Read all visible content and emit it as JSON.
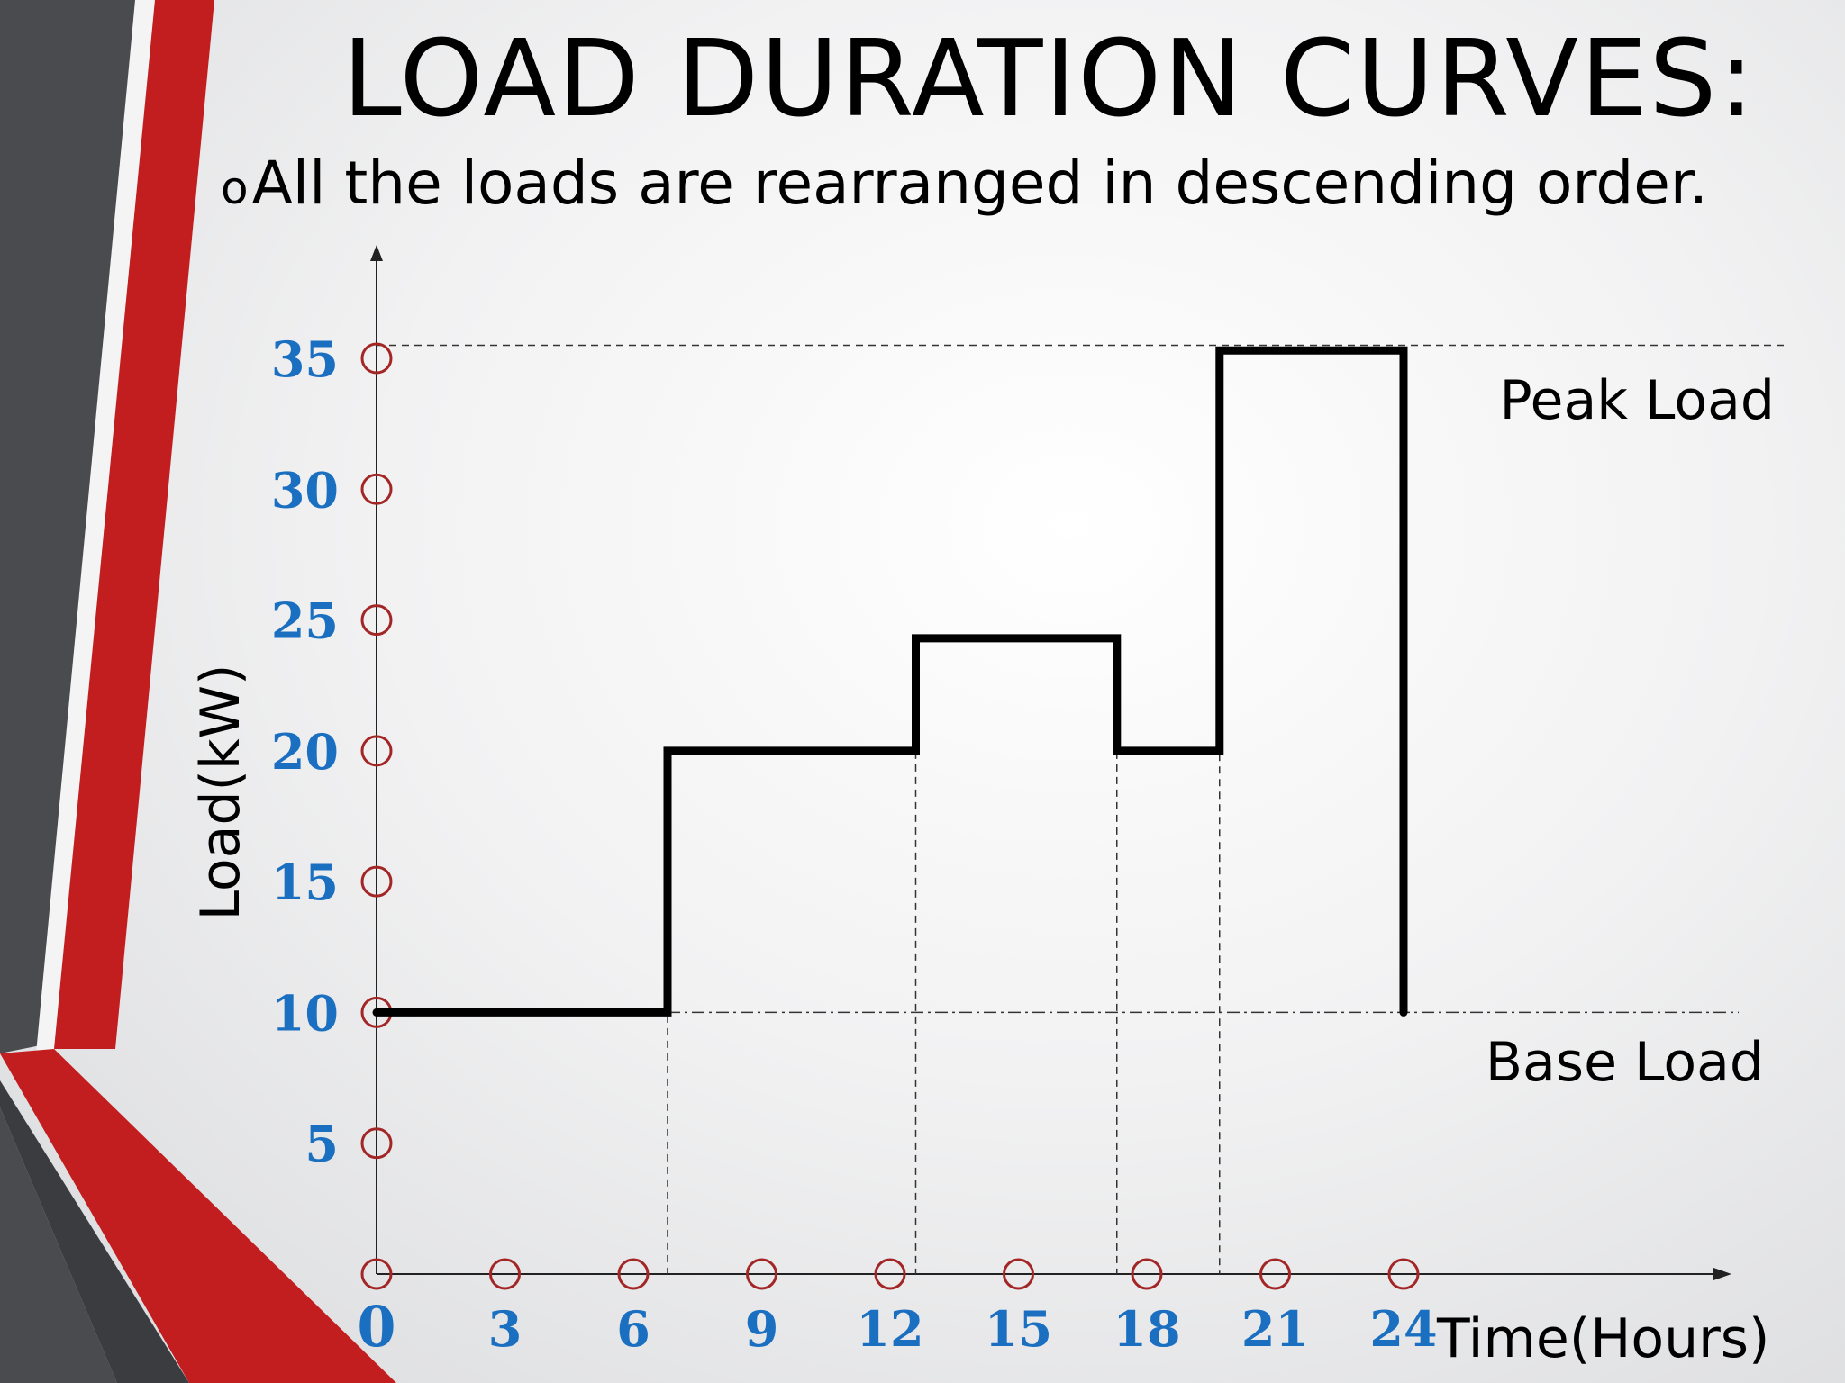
{
  "slide": {
    "title": "LOAD DURATION CURVES:",
    "bullet_marker": "o",
    "bullet_text": "All the loads are rearranged in descending order.",
    "colors": {
      "stripe_red": "#c21d1f",
      "stripe_gray": "#4a4b4e",
      "tick_label_blue": "#1b6fc0",
      "marker_red": "#a32626"
    }
  },
  "chart_data": {
    "type": "line",
    "step": true,
    "xlabel": "Time(Hours)",
    "ylabel": "Load(kW)",
    "x_ticks": [
      0,
      3,
      6,
      9,
      12,
      15,
      18,
      21,
      24
    ],
    "y_ticks": [
      5,
      10,
      15,
      20,
      25,
      30,
      35
    ],
    "xlim": [
      0,
      24
    ],
    "ylim": [
      0,
      35
    ],
    "series": [
      {
        "points": [
          [
            0,
            10
          ],
          [
            6.8,
            10
          ],
          [
            6.8,
            20
          ],
          [
            12.6,
            20
          ],
          [
            12.6,
            24.3
          ],
          [
            17.3,
            24.3
          ],
          [
            17.3,
            20
          ],
          [
            19.7,
            20
          ],
          [
            19.7,
            35.3
          ],
          [
            24,
            35.3
          ],
          [
            24,
            10
          ]
        ]
      }
    ],
    "reference_lines": [
      {
        "label": "Peak Load",
        "y": 35.5
      },
      {
        "label": "Base Load",
        "y": 10
      }
    ],
    "drop_lines_x": [
      6.8,
      12.6,
      17.3,
      19.7
    ]
  }
}
